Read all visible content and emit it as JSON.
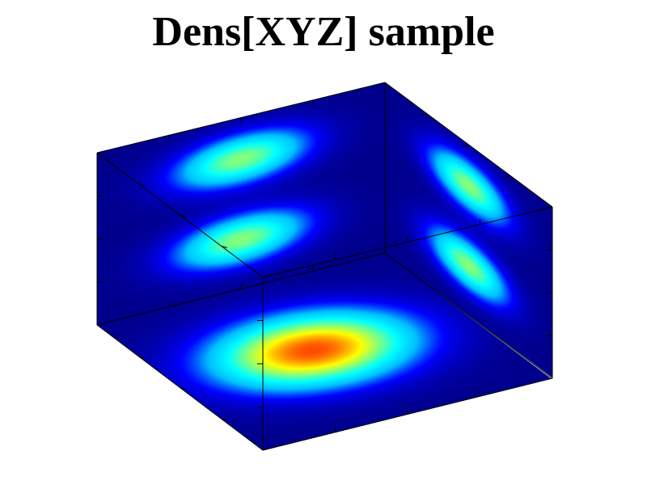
{
  "chart_data": {
    "type": "heatmap",
    "title": "Dens[XYZ] sample",
    "colormap": [
      "#00008b",
      "#0000ff",
      "#00bfff",
      "#00ffff",
      "#7fff7f",
      "#ffff00",
      "#ff8000",
      "#ff0000"
    ],
    "axis_range": [
      -1,
      1
    ],
    "panels": [
      {
        "name": "bottom-plane",
        "blobs": [
          {
            "center": [
              -0.05,
              0.05
            ],
            "radius": [
              0.62,
              0.46
            ],
            "peak": 0.92
          }
        ]
      },
      {
        "name": "back-plane",
        "blobs": [
          {
            "center": [
              0.0,
              0.52
            ],
            "radius": [
              0.45,
              0.28
            ],
            "peak": 0.58
          },
          {
            "center": [
              0.0,
              -0.42
            ],
            "radius": [
              0.45,
              0.28
            ],
            "peak": 0.58
          }
        ]
      },
      {
        "name": "side-plane",
        "blobs": [
          {
            "center": [
              0.0,
              0.52
            ],
            "radius": [
              0.45,
              0.28
            ],
            "peak": 0.58
          },
          {
            "center": [
              0.0,
              -0.42
            ],
            "radius": [
              0.45,
              0.28
            ],
            "peak": 0.58
          }
        ]
      }
    ]
  }
}
